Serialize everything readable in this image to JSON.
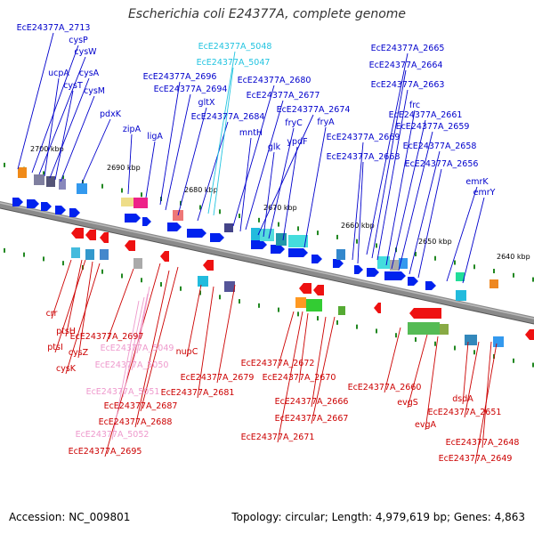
{
  "title": "Escherichia coli E24377A, complete genome",
  "footer": {
    "accession": "Accession: NC_009801",
    "topology": "Topology: circular; Length: 4,979,619 bp; Genes: 4,863"
  },
  "colors": {
    "forward_label": "#0000cc",
    "reverse_label": "#cc0000",
    "rna_forward_label": "#22c4e0",
    "rna_reverse_label": "#ee99cc",
    "forward_gene": "#0022ee",
    "reverse_gene": "#ee1111",
    "backbone": "#888888",
    "scale_tick": "#228822"
  },
  "scale_ticks": [
    "2700 kbp",
    "2690 kbp",
    "2680 kbp",
    "2670 kbp",
    "2660 kbp",
    "2650 kbp",
    "2640 kbp"
  ],
  "forward_labels": [
    "EcE24377A_2713",
    "cysP",
    "cysW",
    "ucpA",
    "cysA",
    "cysT",
    "cysM",
    "pdxK",
    "zipA",
    "ligA",
    "EcE24377A_2696",
    "EcE24377A_2694",
    "gltX",
    "EcE24377A_2684",
    "EcE24377A_2680",
    "EcE24377A_2677",
    "mntH",
    "EcE24377A_2674",
    "fryC",
    "glk",
    "ypdF",
    "fryA",
    "EcE24377A_2665",
    "EcE24377A_2664",
    "EcE24377A_2663",
    "frc",
    "EcE24377A_2661",
    "EcE24377A_2659",
    "EcE24377A_2669",
    "EcE24377A_2658",
    "EcE24377A_2668",
    "EcE24377A_2656",
    "emrK",
    "emrY"
  ],
  "rna_forward_labels": [
    "EcE24377A_5048",
    "EcE24377A_5047"
  ],
  "reverse_labels": [
    "crr",
    "ptsH",
    "ptsI",
    "cysZ",
    "cysK",
    "EcE24377A_2697",
    "nupC",
    "EcE24377A_2681",
    "EcE24377A_2687",
    "EcE24377A_2688",
    "EcE24377A_2695",
    "EcE24377A_2679",
    "EcE24377A_2672",
    "EcE24377A_2670",
    "EcE24377A_2666",
    "EcE24377A_2667",
    "EcE24377A_2671",
    "EcE24377A_2660",
    "evgS",
    "evgA",
    "dsdA",
    "EcE24377A_2651",
    "EcE24377A_2648",
    "EcE24377A_2649"
  ],
  "rna_reverse_labels": [
    "EcE24377A_5049",
    "EcE24377A_5050",
    "EcE24377A_5051",
    "EcE24377A_5052"
  ]
}
